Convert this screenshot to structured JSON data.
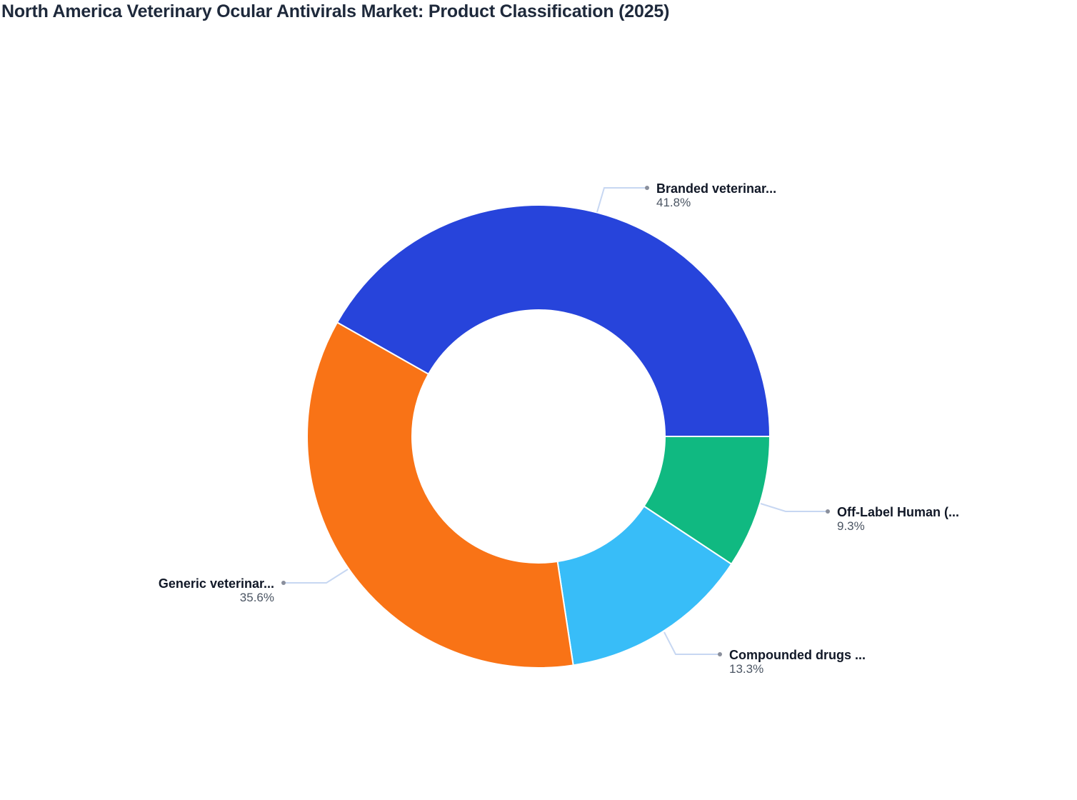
{
  "title": "North America Veterinary Ocular Antivirals Market: Product Classification (2025)",
  "chart_data": {
    "type": "pie",
    "variant": "donut",
    "title": "North America Veterinary Ocular Antivirals Market: Product Classification (2025)",
    "categories": [
      "Branded veterinar...",
      "Off-Label Human (...",
      "Compounded drugs ...",
      "Generic veterinar..."
    ],
    "values": [
      41.8,
      9.3,
      13.3,
      35.6
    ],
    "value_labels": [
      "41.8%",
      "9.3%",
      "13.3%",
      "35.6%"
    ],
    "colors": [
      "#2744db",
      "#10b981",
      "#38bdf8",
      "#f97316"
    ],
    "unit": "%",
    "legend": "none (outside labels with leader lines)"
  },
  "labels": [
    {
      "name": "Branded veterinar...",
      "pct": "41.8%"
    },
    {
      "name": "Off-Label Human (...",
      "pct": "9.3%"
    },
    {
      "name": "Compounded drugs ...",
      "pct": "13.3%"
    },
    {
      "name": "Generic veterinar...",
      "pct": "35.6%"
    }
  ]
}
